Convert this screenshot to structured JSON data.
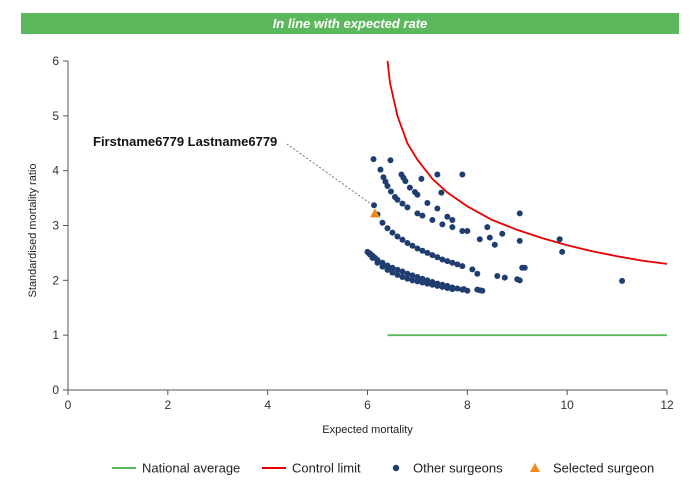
{
  "banner": {
    "text": "In line with expected rate",
    "color": "#5cb85c"
  },
  "chart_data": {
    "type": "scatter",
    "xlabel": "Expected mortality",
    "ylabel": "Standardised mortality ratio",
    "xlim": [
      0,
      12
    ],
    "ylim": [
      0,
      6
    ],
    "xticks": [
      0,
      2,
      4,
      6,
      8,
      10,
      12
    ],
    "yticks": [
      0,
      1,
      2,
      3,
      4,
      5,
      6
    ],
    "grid": false,
    "legend_position": "bottom",
    "annotation": {
      "label": "Firstname6779 Lastname6779",
      "x": 6.15,
      "y": 3.22
    },
    "series": [
      {
        "name": "National average",
        "type": "line",
        "color": "#5cb85c",
        "x": [
          6.4,
          12
        ],
        "y": [
          1,
          1
        ]
      },
      {
        "name": "Control limit",
        "type": "line",
        "color": "#e60000",
        "x": [
          6.4,
          6.45,
          6.6,
          6.8,
          7.0,
          7.3,
          7.6,
          8.0,
          8.5,
          9.0,
          9.5,
          10.0,
          10.5,
          11.0,
          11.5,
          12.0
        ],
        "y": [
          6.0,
          5.6,
          5.0,
          4.5,
          4.2,
          3.85,
          3.6,
          3.35,
          3.1,
          2.92,
          2.77,
          2.64,
          2.53,
          2.44,
          2.36,
          2.3
        ]
      },
      {
        "name": "Other surgeons",
        "type": "scatter",
        "color": "#1f3d6e",
        "x": [
          6.12,
          6.46,
          6.26,
          6.32,
          6.36,
          6.4,
          6.47,
          6.55,
          6.6,
          6.7,
          6.8,
          7.0,
          7.1,
          7.3,
          7.5,
          7.7,
          7.9,
          7.08,
          7.4,
          7.48,
          7.9,
          6.68,
          6.72,
          6.76,
          6.85,
          6.95,
          7.0,
          7.2,
          7.4,
          7.6,
          7.7,
          8.0,
          6.13,
          6.2,
          6.3,
          6.4,
          6.5,
          6.6,
          6.7,
          6.8,
          6.9,
          7.0,
          7.1,
          7.2,
          7.3,
          7.4,
          7.5,
          7.6,
          7.7,
          7.8,
          7.9,
          6.02,
          6.05,
          6.1,
          6.15,
          6.2,
          6.3,
          6.4,
          6.5,
          6.6,
          6.7,
          6.8,
          6.9,
          7.0,
          7.1,
          7.2,
          7.3,
          7.4,
          7.5,
          7.6,
          7.7,
          7.8,
          7.9,
          8.0,
          6.0,
          6.05,
          6.1,
          6.2,
          6.3,
          6.4,
          6.5,
          6.6,
          6.7,
          6.8,
          6.9,
          7.0,
          7.1,
          7.2,
          7.3,
          7.4,
          7.5,
          7.6,
          7.7,
          7.93,
          8.2,
          8.25,
          8.3,
          8.1,
          8.2,
          8.25,
          8.4,
          8.45,
          8.55,
          8.6,
          8.7,
          8.75,
          9.05,
          9.05,
          9.1,
          9.0,
          9.05,
          9.15,
          9.85,
          9.9,
          11.1
        ],
        "y": [
          4.21,
          4.19,
          4.02,
          3.88,
          3.8,
          3.72,
          3.62,
          3.52,
          3.47,
          3.4,
          3.33,
          3.22,
          3.18,
          3.1,
          3.02,
          2.97,
          2.9,
          3.85,
          3.93,
          3.6,
          3.93,
          3.93,
          3.87,
          3.81,
          3.69,
          3.61,
          3.56,
          3.41,
          3.31,
          3.16,
          3.1,
          2.9,
          3.37,
          3.2,
          3.05,
          2.95,
          2.87,
          2.8,
          2.74,
          2.68,
          2.63,
          2.58,
          2.54,
          2.5,
          2.46,
          2.42,
          2.38,
          2.35,
          2.32,
          2.29,
          2.26,
          2.5,
          2.49,
          2.45,
          2.41,
          2.37,
          2.32,
          2.27,
          2.23,
          2.19,
          2.16,
          2.12,
          2.09,
          2.06,
          2.03,
          2.0,
          1.97,
          1.94,
          1.92,
          1.9,
          1.87,
          1.85,
          1.83,
          1.81,
          2.52,
          2.47,
          2.41,
          2.32,
          2.25,
          2.19,
          2.14,
          2.1,
          2.06,
          2.03,
          2.0,
          1.98,
          1.96,
          1.94,
          1.92,
          1.9,
          1.88,
          1.86,
          1.84,
          1.84,
          1.83,
          1.82,
          1.81,
          2.2,
          2.12,
          2.75,
          2.97,
          2.78,
          2.65,
          2.08,
          2.85,
          2.05,
          3.22,
          2.72,
          2.23,
          2.02,
          2.0,
          2.23,
          2.75,
          2.52,
          1.99
        ]
      },
      {
        "name": "Selected surgeon",
        "type": "scatter",
        "marker": "triangle",
        "color": "#f08c1e",
        "x": [
          6.15
        ],
        "y": [
          3.22
        ]
      }
    ]
  }
}
